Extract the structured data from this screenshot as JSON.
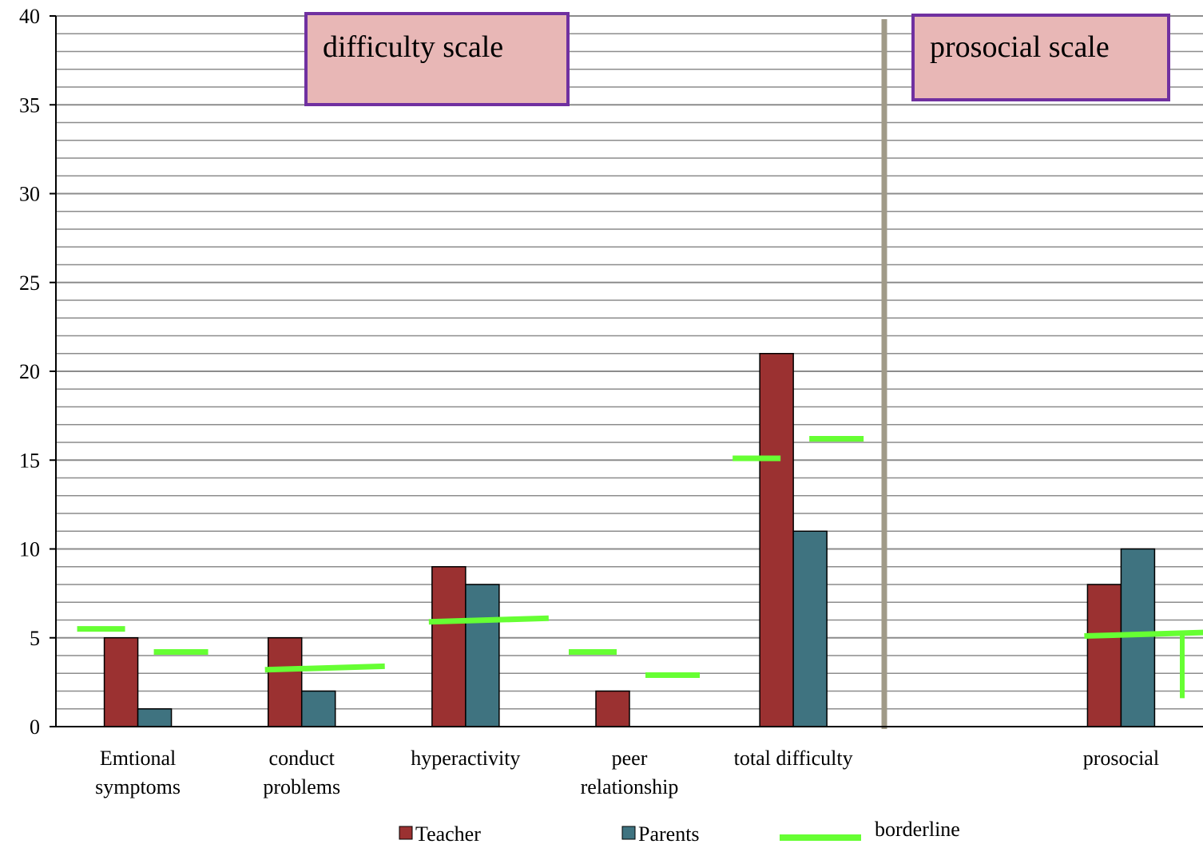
{
  "chart_data": {
    "type": "bar",
    "categories": [
      [
        "Emtional",
        "symptoms"
      ],
      [
        "conduct",
        "problems"
      ],
      [
        "hyperactivity"
      ],
      [
        "peer",
        "relationship"
      ],
      [
        "total difficulty"
      ],
      [
        ""
      ],
      [
        "prosocial"
      ]
    ],
    "series": [
      {
        "name": "Teacher",
        "color": "#9b3131",
        "values": [
          5,
          5,
          9,
          2,
          21,
          null,
          8
        ]
      },
      {
        "name": "Parents",
        "color": "#3f7380",
        "values": [
          1,
          2,
          8,
          0,
          11,
          null,
          10
        ]
      }
    ],
    "borderline": {
      "name": "borderline",
      "color": "#66ff33",
      "teacher": [
        5.5,
        3.2,
        5.9,
        4.2,
        15.1,
        null,
        5.1
      ],
      "parents": [
        4.2,
        3.4,
        6.1,
        2.9,
        16.2,
        null,
        5.3
      ]
    },
    "ylim": [
      0,
      40
    ],
    "yticks": [
      0,
      5,
      10,
      15,
      20,
      25,
      30,
      35,
      40
    ],
    "minor_step": 1,
    "grid": true,
    "legend": "bottom",
    "annotations": {
      "difficulty_box": "difficulty scale",
      "prosocial_box": "prosocial scale"
    }
  }
}
